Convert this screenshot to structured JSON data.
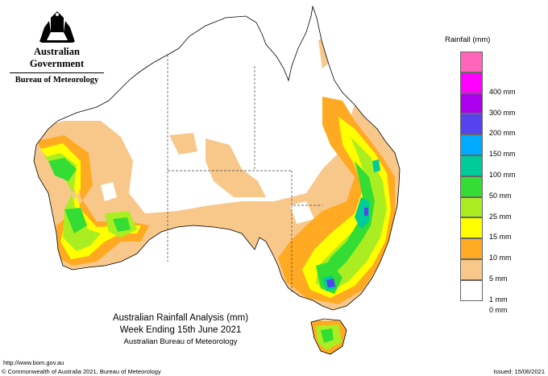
{
  "header": {
    "government": "Australian Government",
    "bureau": "Bureau of Meteorology"
  },
  "map": {
    "title": "Australian Rainfall Analysis (mm)",
    "period": "Week Ending 15th June 2021",
    "source": "Australian Bureau of Meteorology"
  },
  "legend": {
    "title": "Rainfall (mm)",
    "items": [
      {
        "label": "",
        "color": "#ff66bb"
      },
      {
        "label": "400 mm",
        "color": "#ff00ff"
      },
      {
        "label": "300 mm",
        "color": "#aa00ee"
      },
      {
        "label": "200 mm",
        "color": "#5544ee"
      },
      {
        "label": "150 mm",
        "color": "#00aaff"
      },
      {
        "label": "100 mm",
        "color": "#00cc99"
      },
      {
        "label": "50 mm",
        "color": "#33dd33"
      },
      {
        "label": "25 mm",
        "color": "#aaee22"
      },
      {
        "label": "15 mm",
        "color": "#ffff00"
      },
      {
        "label": "10 mm",
        "color": "#ffaa22"
      },
      {
        "label": "5 mm",
        "color": "#f8c88a"
      },
      {
        "label": "1 mm",
        "color": "#ffffff"
      },
      {
        "label": "0 mm",
        "color": ""
      }
    ]
  },
  "footer": {
    "url": "http://www.bom.gov.au",
    "copyright": "© Commonwealth of Australia 2021, Bureau of Meteorology",
    "issued": "Issued: 15/06/2021"
  },
  "colors": {
    "light_orange": "#f8c88a",
    "orange": "#ffaa22",
    "yellow": "#ffff00",
    "yellow_green": "#aaee22",
    "green": "#33dd33",
    "teal": "#00cc99",
    "blue": "#5544ee"
  }
}
